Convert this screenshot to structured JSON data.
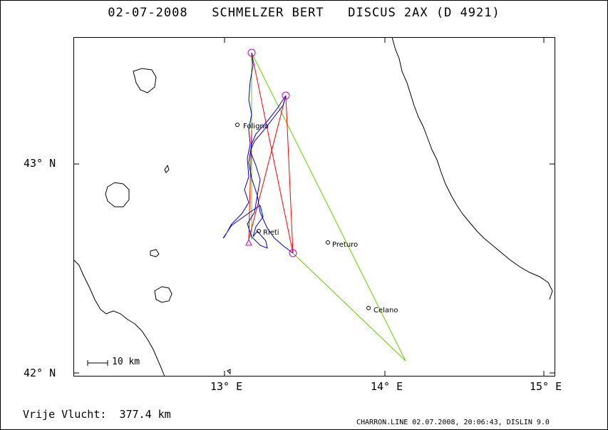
{
  "header": {
    "title": "02-07-2008   SCHMELZER BERT   DISCUS 2AX (D 4921)"
  },
  "axes": {
    "lat_labels": [
      "43° N",
      "42° N"
    ],
    "lon_labels": [
      "13° E",
      "14° E",
      "15° E"
    ]
  },
  "cities": [
    {
      "name": "Foligno"
    },
    {
      "name": "Rieti"
    },
    {
      "name": "Preturo"
    },
    {
      "name": "Celano"
    }
  ],
  "scale_label": "10 km",
  "footer": {
    "distance": "Vrije Vlucht:  377.4 km",
    "credit": "CHARRON.LINE 02.07.2008, 20:06:43, DISLIN 9.0"
  },
  "colors": {
    "flight_track": "#0000cc",
    "task_lines": "#ff0000",
    "optimized_lines": "#66cc00",
    "turnpoints": "#cc00cc"
  }
}
